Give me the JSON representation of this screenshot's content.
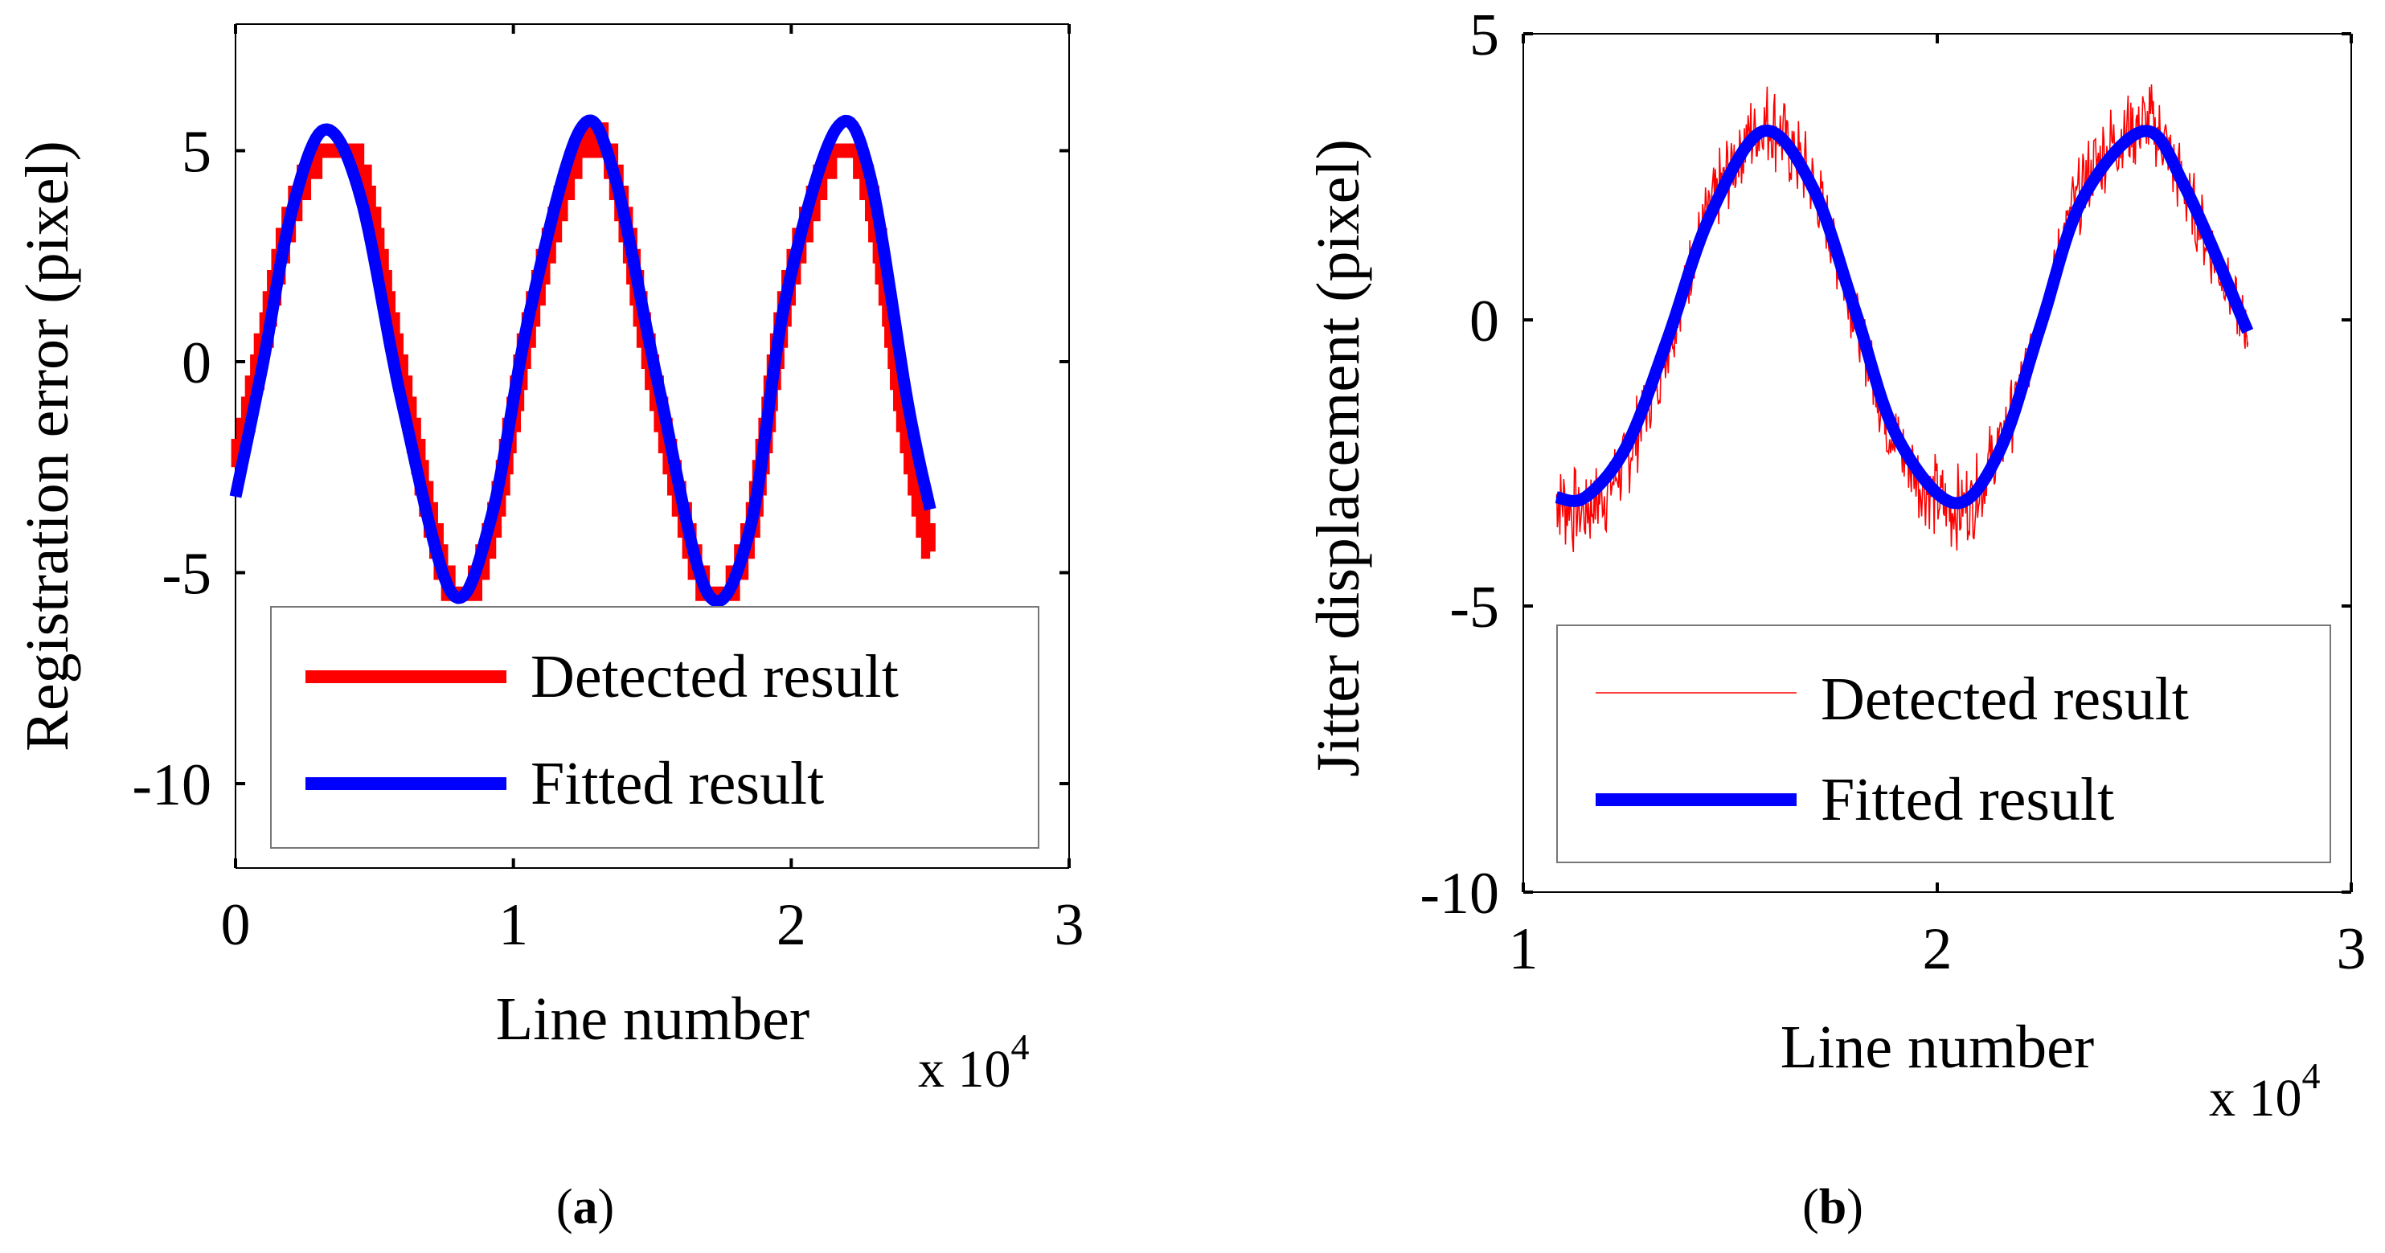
{
  "chart_data": [
    {
      "type": "line",
      "panel_label": "a",
      "xlabel": "Line number",
      "ylabel": "Registration error (pixel)",
      "x_multiplier": "x 10",
      "x_multiplier_exp": "4",
      "xlim": [
        0,
        3
      ],
      "ylim": [
        -12,
        8
      ],
      "xticks": [
        0,
        1,
        2,
        3
      ],
      "yticks": [
        5,
        0,
        -5,
        -10
      ],
      "legend_location": "bottom",
      "legend": [
        "Detected result",
        "Fitted result"
      ],
      "series": [
        {
          "name": "Detected result",
          "color": "#ff0000",
          "style": "thick staircase",
          "x": [
            0.0,
            0.1,
            0.2,
            0.32,
            0.45,
            0.6,
            0.78,
            0.92,
            1.06,
            1.24,
            1.36,
            1.52,
            1.7,
            1.85,
            1.98,
            2.16,
            2.28,
            2.42,
            2.5
          ],
          "values": [
            -2.5,
            0.5,
            3.5,
            5.0,
            4.5,
            -0.5,
            -5.5,
            -4.0,
            1.0,
            5.0,
            4.5,
            -1.0,
            -5.5,
            -4.0,
            1.5,
            5.0,
            4.0,
            -2.0,
            -4.5
          ]
        },
        {
          "name": "Fitted result",
          "color": "#0000ff",
          "style": "thick",
          "x": [
            0.0,
            0.1,
            0.2,
            0.32,
            0.45,
            0.6,
            0.78,
            0.92,
            1.06,
            1.24,
            1.36,
            1.52,
            1.7,
            1.85,
            1.98,
            2.16,
            2.28,
            2.42,
            2.5
          ],
          "values": [
            -3.2,
            0.0,
            3.5,
            5.5,
            3.9,
            -1.0,
            -5.5,
            -3.7,
            1.2,
            5.5,
            4.5,
            -0.5,
            -5.5,
            -4.0,
            1.5,
            5.5,
            4.5,
            -1.0,
            -3.5
          ]
        }
      ]
    },
    {
      "type": "line",
      "panel_label": "b",
      "xlabel": "Line number",
      "ylabel": "Jitter displacement (pixel)",
      "x_multiplier": "x 10",
      "x_multiplier_exp": "4",
      "xlim": [
        1,
        3
      ],
      "ylim": [
        -10,
        5
      ],
      "xticks": [
        1,
        2,
        3
      ],
      "yticks": [
        5,
        0,
        -5,
        -10
      ],
      "legend_location": "bottom",
      "legend": [
        "Detected result",
        "Fitted result"
      ],
      "series": [
        {
          "name": "Detected result",
          "color": "#ff0000",
          "style": "thin noisy",
          "x": [
            1.08,
            1.15,
            1.25,
            1.35,
            1.45,
            1.58,
            1.7,
            1.8,
            1.9,
            2.04,
            2.15,
            2.25,
            2.35,
            2.5,
            2.6,
            2.75
          ],
          "values": [
            -3.1,
            -3.3,
            -2.4,
            -0.4,
            1.9,
            3.4,
            2.3,
            0.1,
            -2.1,
            -3.3,
            -2.2,
            0.0,
            2.3,
            3.4,
            2.2,
            -0.2
          ]
        },
        {
          "name": "Fitted result",
          "color": "#0000ff",
          "style": "thick",
          "x": [
            1.08,
            1.15,
            1.25,
            1.35,
            1.45,
            1.58,
            1.7,
            1.8,
            1.9,
            2.04,
            2.15,
            2.25,
            2.35,
            2.5,
            2.6,
            2.75
          ],
          "values": [
            -3.1,
            -3.1,
            -2.2,
            -0.3,
            1.8,
            3.3,
            2.3,
            0.2,
            -2.0,
            -3.2,
            -2.3,
            -0.1,
            2.1,
            3.3,
            2.3,
            -0.2
          ]
        }
      ]
    }
  ]
}
